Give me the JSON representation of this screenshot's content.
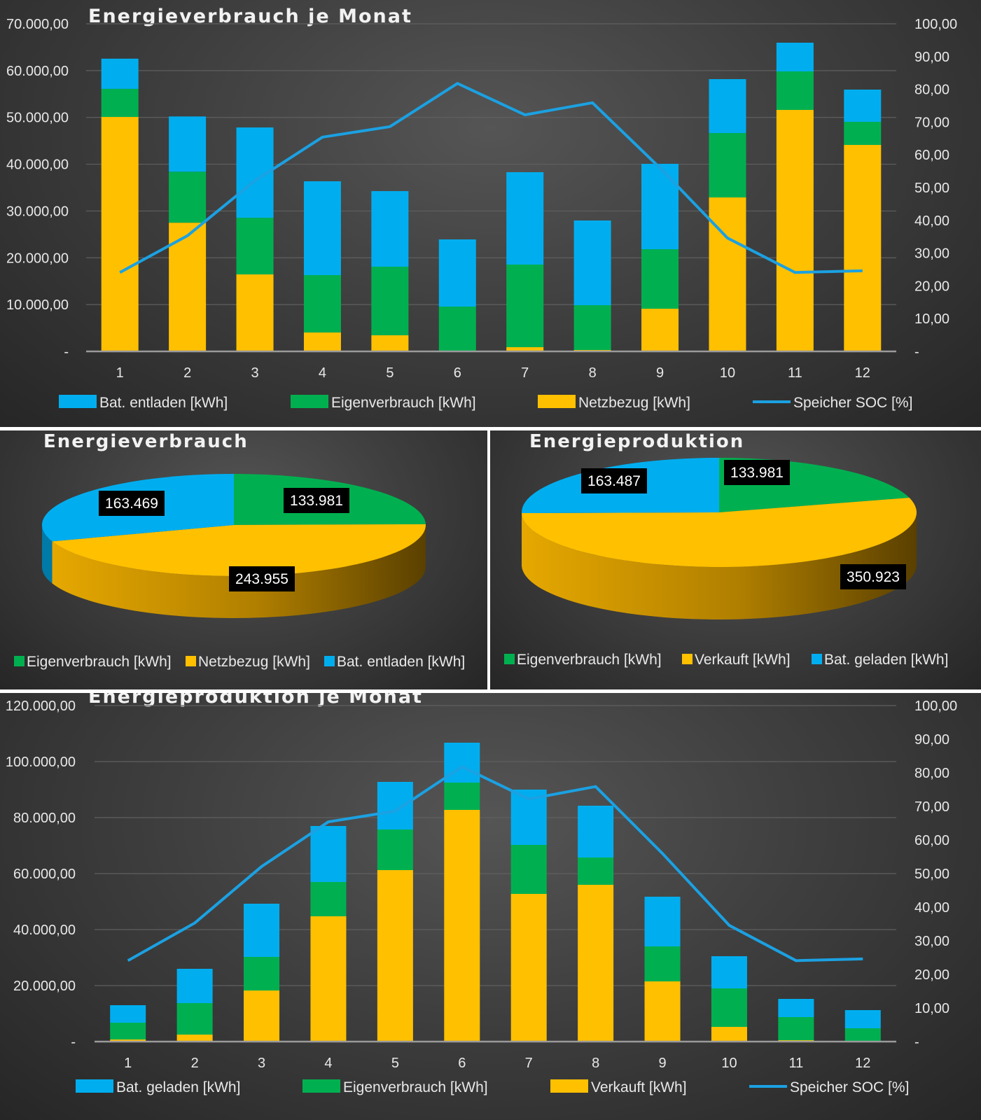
{
  "colors": {
    "blue": "#00AEEF",
    "green": "#00B050",
    "yellow": "#FFC000",
    "soc_line": "#1BA1E2"
  },
  "chart_data": [
    {
      "id": "consumption_monthly",
      "type": "bar",
      "stacked": true,
      "title": "Energieverbrauch je Monat",
      "xlabel": "",
      "ylabel": "",
      "categories": [
        "1",
        "2",
        "3",
        "4",
        "5",
        "6",
        "7",
        "8",
        "9",
        "10",
        "11",
        "12"
      ],
      "ylim": [
        0,
        70000
      ],
      "y_ticks": [
        "-",
        "10.000,00",
        "20.000,00",
        "30.000,00",
        "40.000,00",
        "50.000,00",
        "60.000,00",
        "70.000,00"
      ],
      "y2lim": [
        0,
        100
      ],
      "y2_ticks": [
        "-",
        "10,00",
        "20,00",
        "30,00",
        "40,00",
        "50,00",
        "60,00",
        "70,00",
        "80,00",
        "90,00",
        "100,00"
      ],
      "grid": true,
      "legend_position": "bottom",
      "series": [
        {
          "name": "Netzbezug [kWh]",
          "color_key": "yellow",
          "kind": "bar",
          "values": [
            50100,
            27500,
            16450,
            4050,
            3450,
            0,
            900,
            300,
            9120,
            32900,
            51600,
            44120
          ]
        },
        {
          "name": "Eigenverbrauch [kWh]",
          "color_key": "green",
          "kind": "bar",
          "values": [
            6000,
            10900,
            12100,
            12250,
            14650,
            9570,
            17650,
            9570,
            12710,
            13760,
            8230,
            4940
          ]
        },
        {
          "name": "Bat. entladen [kWh]",
          "color_key": "blue",
          "kind": "bar",
          "values": [
            6450,
            11800,
            19300,
            20050,
            16150,
            14360,
            19740,
            18100,
            18250,
            11520,
            6130,
            6880
          ]
        },
        {
          "name": "Speicher SOC [%]",
          "color_key": "soc_line",
          "kind": "line",
          "axis": "secondary",
          "values": [
            24.1,
            35.3,
            52.1,
            65.4,
            68.6,
            81.8,
            72.2,
            75.9,
            56.0,
            34.6,
            24.1,
            24.6
          ]
        }
      ],
      "legend": [
        "Bat. entladen [kWh]",
        "Eigenverbrauch [kWh]",
        "Netzbezug [kWh]",
        "Speicher SOC [%]"
      ]
    },
    {
      "id": "consumption_pie",
      "type": "pie",
      "title": "Energieverbrauch",
      "legend_position": "bottom",
      "slices": [
        {
          "name": "Eigenverbrauch [kWh]",
          "value": 133981,
          "label": "133.981",
          "color_key": "green"
        },
        {
          "name": "Netzbezug [kWh]",
          "value": 243955,
          "label": "243.955",
          "color_key": "yellow"
        },
        {
          "name": "Bat. entladen [kWh]",
          "value": 163469,
          "label": "163.469",
          "color_key": "blue"
        }
      ]
    },
    {
      "id": "production_pie",
      "type": "pie",
      "title": "Energieproduktion",
      "legend_position": "bottom",
      "slices": [
        {
          "name": "Eigenverbrauch [kWh]",
          "value": 133981,
          "label": "133.981",
          "color_key": "green"
        },
        {
          "name": "Verkauft [kWh]",
          "value": 350923,
          "label": "350.923",
          "color_key": "yellow"
        },
        {
          "name": "Bat. geladen [kWh]",
          "value": 163487,
          "label": "163.487",
          "color_key": "blue"
        }
      ]
    },
    {
      "id": "production_monthly",
      "type": "bar",
      "stacked": true,
      "title": "Energieproduktion je Monat",
      "xlabel": "",
      "ylabel": "",
      "categories": [
        "1",
        "2",
        "3",
        "4",
        "5",
        "6",
        "7",
        "8",
        "9",
        "10",
        "11",
        "12"
      ],
      "ylim": [
        0,
        120000
      ],
      "y_ticks": [
        "-",
        "20.000,00",
        "40.000,00",
        "60.000,00",
        "80.000,00",
        "100.000,00",
        "120.000,00"
      ],
      "y2lim": [
        0,
        100
      ],
      "y2_ticks": [
        "-",
        "10,00",
        "20,00",
        "30,00",
        "40,00",
        "50,00",
        "60,00",
        "70,00",
        "80,00",
        "90,00",
        "100,00"
      ],
      "grid": true,
      "legend_position": "bottom",
      "series": [
        {
          "name": "Verkauft [kWh]",
          "color_key": "yellow",
          "kind": "bar",
          "values": [
            750,
            2500,
            18250,
            44750,
            61250,
            82750,
            52750,
            56000,
            21500,
            5250,
            500,
            0
          ]
        },
        {
          "name": "Eigenverbrauch [kWh]",
          "color_key": "green",
          "kind": "bar",
          "values": [
            6000,
            11250,
            12000,
            12250,
            14500,
            9750,
            17500,
            9750,
            12500,
            13750,
            8250,
            4750
          ]
        },
        {
          "name": "Bat. geladen [kWh]",
          "color_key": "blue",
          "kind": "bar",
          "values": [
            6250,
            12250,
            19000,
            20000,
            17000,
            14250,
            19750,
            18500,
            17750,
            11500,
            6500,
            6500
          ]
        },
        {
          "name": "Speicher SOC [%]",
          "color_key": "soc_line",
          "kind": "line",
          "axis": "secondary",
          "values": [
            24.1,
            35.3,
            52.1,
            65.4,
            68.6,
            81.8,
            72.2,
            75.9,
            56.0,
            34.6,
            24.1,
            24.6
          ]
        }
      ],
      "legend": [
        "Bat. geladen [kWh]",
        "Eigenverbrauch [kWh]",
        "Verkauft [kWh]",
        "Speicher SOC [%]"
      ]
    }
  ]
}
